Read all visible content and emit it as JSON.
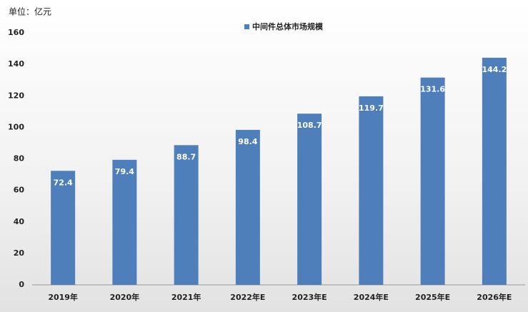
{
  "chart_data": {
    "type": "bar",
    "unit_label": "单位：亿元",
    "series": [
      {
        "name": "中间件总体市场规模",
        "color": "#4f7fba",
        "values": [
          72.4,
          79.4,
          88.7,
          98.4,
          108.7,
          119.7,
          131.6,
          144.2
        ]
      }
    ],
    "categories": [
      "2019年",
      "2020年",
      "2021年",
      "2022年E",
      "2023年E",
      "2024年E",
      "2025年E",
      "2026年E"
    ],
    "ylim": [
      0,
      160
    ],
    "yticks": [
      0,
      20,
      40,
      60,
      80,
      100,
      120,
      140,
      160
    ],
    "grid": false,
    "legend": "top"
  }
}
